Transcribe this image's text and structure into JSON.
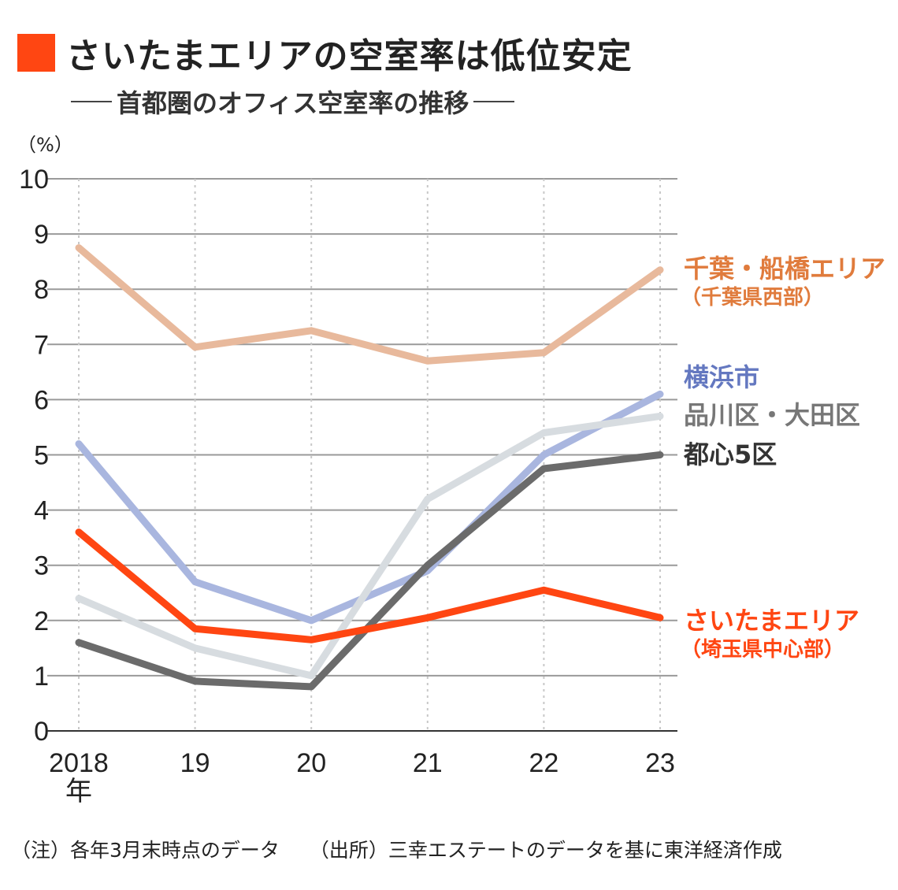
{
  "title": "さいたまエリアの空室率は低位安定",
  "subtitle": "首都圏のオフィス空室率の推移",
  "footer": {
    "note": "（注）各年3月末時点のデータ",
    "source": "（出所）三幸エステートのデータを基に東洋経済作成"
  },
  "colors": {
    "accent": "#ff4612",
    "chiba": "#e8b99c",
    "chiba_label": "#e07b3c",
    "yokohama": "#a9b6df",
    "yokohama_label": "#6478c0",
    "shinagawa": "#d7dce0",
    "shinagawa_label": "#777777",
    "toshin": "#6b6b6b",
    "toshin_label": "#333333",
    "saitama": "#ff4612"
  },
  "chart_data": {
    "type": "line",
    "ylabel": "（%）",
    "ylim": [
      0,
      10
    ],
    "yticks": [
      "0",
      "1",
      "2",
      "3",
      "4",
      "5",
      "6",
      "7",
      "8",
      "9",
      "10"
    ],
    "x_tick_labels": [
      "2018",
      "19",
      "20",
      "21",
      "22",
      "23"
    ],
    "x_first_suffix": "年",
    "x": [
      2018,
      2019,
      2020,
      2021,
      2022,
      2023
    ],
    "grid": true,
    "series": [
      {
        "key": "chiba",
        "name": "千葉・船橋エリア",
        "sub": "（千葉県西部）",
        "values": [
          8.75,
          6.95,
          7.25,
          6.7,
          6.85,
          8.35
        ]
      },
      {
        "key": "yokohama",
        "name": "横浜市",
        "sub": "",
        "values": [
          5.2,
          2.7,
          2.0,
          2.9,
          5.0,
          6.1
        ]
      },
      {
        "key": "shinagawa",
        "name": "品川区・大田区",
        "sub": "",
        "values": [
          2.4,
          1.5,
          1.0,
          4.2,
          5.4,
          5.7
        ]
      },
      {
        "key": "toshin",
        "name": "都心5区",
        "sub": "",
        "values": [
          1.6,
          0.9,
          0.8,
          3.0,
          4.75,
          5.0
        ]
      },
      {
        "key": "saitama",
        "name": "さいたまエリア",
        "sub": "（埼玉県中心部）",
        "values": [
          3.6,
          1.85,
          1.65,
          2.05,
          2.55,
          2.05
        ]
      }
    ]
  }
}
